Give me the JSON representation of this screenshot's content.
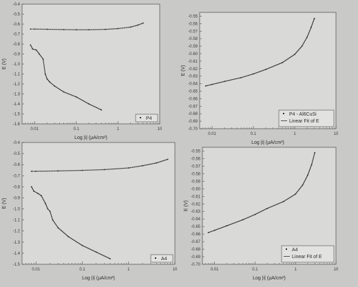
{
  "chart_data": [
    {
      "type": "scatter",
      "xlabel": "Log |i| (µA/cm²)",
      "ylabel": "E (V)",
      "xscale": "log",
      "xlim": [
        0.005,
        10
      ],
      "ylim": [
        -1.6,
        -0.4
      ],
      "xticks": [
        "0.01",
        "0.1",
        "1",
        "10"
      ],
      "yticks": [
        "-0.4",
        "-0.5",
        "-0.6",
        "-0.7",
        "-0.8",
        "-0.9",
        "-1.0",
        "-1.1",
        "-1.2",
        "-1.3",
        "-1.4",
        "-1.5",
        "-1.6"
      ],
      "legend": {
        "position": "bottom-right",
        "entries": [
          {
            "marker": "▪",
            "label": "P4"
          }
        ]
      },
      "series": [
        {
          "points": [
            [
              0.008,
              -0.65
            ],
            [
              0.01,
              -0.65
            ],
            [
              0.02,
              -0.652
            ],
            [
              0.05,
              -0.655
            ],
            [
              0.1,
              -0.657
            ],
            [
              0.2,
              -0.657
            ],
            [
              0.5,
              -0.653
            ],
            [
              1,
              -0.645
            ],
            [
              2,
              -0.63
            ],
            [
              3,
              -0.61
            ],
            [
              4,
              -0.59
            ]
          ]
        },
        {
          "points": [
            [
              0.008,
              -0.81
            ],
            [
              0.009,
              -0.85
            ],
            [
              0.011,
              -0.86
            ],
            [
              0.013,
              -0.9
            ],
            [
              0.016,
              -0.95
            ],
            [
              0.018,
              -1.1
            ],
            [
              0.02,
              -1.15
            ],
            [
              0.023,
              -1.18
            ],
            [
              0.03,
              -1.22
            ],
            [
              0.05,
              -1.28
            ],
            [
              0.1,
              -1.33
            ],
            [
              0.2,
              -1.4
            ],
            [
              0.4,
              -1.46
            ]
          ]
        }
      ]
    },
    {
      "type": "scatter",
      "xlabel": "Log |i| (µA/cm²)",
      "ylabel": "E (V)",
      "xscale": "log",
      "xlim": [
        0.005,
        10
      ],
      "ylim": [
        -0.7,
        -0.545
      ],
      "xticks": [
        "0.01",
        "0.1",
        "1",
        "10"
      ],
      "yticks": [
        "-0.55",
        "-0.56",
        "-0.57",
        "-0.58",
        "-0.59",
        "-0.60",
        "-0.61",
        "-0.62",
        "-0.63",
        "-0.64",
        "-0.65",
        "-0.66",
        "-0.67",
        "-0.68",
        "-0.69",
        "-0.70"
      ],
      "legend": {
        "position": "bottom-right",
        "entries": [
          {
            "marker": "▪",
            "label": "P4 - Al6CuSi"
          },
          {
            "marker": "line",
            "label": "Linear Fit of E"
          }
        ]
      },
      "series": [
        {
          "points": [
            [
              0.007,
              -0.643
            ],
            [
              0.01,
              -0.641
            ],
            [
              0.02,
              -0.637
            ],
            [
              0.05,
              -0.632
            ],
            [
              0.1,
              -0.627
            ],
            [
              0.2,
              -0.621
            ],
            [
              0.5,
              -0.612
            ],
            [
              1,
              -0.601
            ],
            [
              1.5,
              -0.59
            ],
            [
              2,
              -0.578
            ],
            [
              2.5,
              -0.565
            ],
            [
              3,
              -0.553
            ]
          ]
        }
      ]
    },
    {
      "type": "scatter",
      "xlabel": "Log |i| (µA/cm²)",
      "ylabel": "E (V)",
      "xscale": "log",
      "xlim": [
        0.005,
        10
      ],
      "ylim": [
        -1.5,
        -0.4
      ],
      "xticks": [
        "0.01",
        "0.1",
        "1",
        "10"
      ],
      "yticks": [
        "-0.4",
        "-0.5",
        "-0.6",
        "-0.7",
        "-0.8",
        "-0.9",
        "-1.0",
        "-1.1",
        "-1.2",
        "-1.3",
        "-1.4",
        "-1.5"
      ],
      "legend": {
        "position": "bottom-right",
        "entries": [
          {
            "marker": "▪",
            "label": "A4"
          }
        ]
      },
      "series": [
        {
          "points": [
            [
              0.008,
              -0.66
            ],
            [
              0.01,
              -0.66
            ],
            [
              0.03,
              -0.657
            ],
            [
              0.1,
              -0.652
            ],
            [
              0.3,
              -0.645
            ],
            [
              1,
              -0.63
            ],
            [
              2,
              -0.61
            ],
            [
              4,
              -0.585
            ],
            [
              7,
              -0.552
            ]
          ]
        },
        {
          "points": [
            [
              0.008,
              -0.8
            ],
            [
              0.009,
              -0.84
            ],
            [
              0.011,
              -0.86
            ],
            [
              0.013,
              -0.88
            ],
            [
              0.016,
              -0.95
            ],
            [
              0.018,
              -1.0
            ],
            [
              0.02,
              -1.02
            ],
            [
              0.023,
              -1.1
            ],
            [
              0.03,
              -1.17
            ],
            [
              0.05,
              -1.25
            ],
            [
              0.1,
              -1.33
            ],
            [
              0.2,
              -1.39
            ],
            [
              0.4,
              -1.45
            ]
          ]
        }
      ]
    },
    {
      "type": "scatter",
      "xlabel": "Log |i| (µA/cm²)",
      "ylabel": "E (V)",
      "xscale": "log",
      "xlim": [
        0.005,
        10
      ],
      "ylim": [
        -0.7,
        -0.545
      ],
      "xticks": [
        "0.01",
        "0.1",
        "1",
        "10"
      ],
      "yticks": [
        "-0.55",
        "-0.56",
        "-0.57",
        "-0.58",
        "-0.59",
        "-0.60",
        "-0.61",
        "-0.62",
        "-0.63",
        "-0.64",
        "-0.65",
        "-0.66",
        "-0.67",
        "-0.68",
        "-0.69",
        "-0.70"
      ],
      "legend": {
        "position": "bottom-right",
        "entries": [
          {
            "marker": "▪",
            "label": "A4"
          },
          {
            "marker": "line",
            "label": "Linear Fit of E"
          }
        ]
      },
      "series": [
        {
          "points": [
            [
              0.007,
              -0.658
            ],
            [
              0.01,
              -0.655
            ],
            [
              0.02,
              -0.649
            ],
            [
              0.05,
              -0.641
            ],
            [
              0.1,
              -0.634
            ],
            [
              0.2,
              -0.626
            ],
            [
              0.5,
              -0.617
            ],
            [
              1,
              -0.607
            ],
            [
              1.5,
              -0.595
            ],
            [
              2,
              -0.582
            ],
            [
              2.5,
              -0.568
            ],
            [
              3,
              -0.552
            ]
          ]
        }
      ]
    }
  ]
}
